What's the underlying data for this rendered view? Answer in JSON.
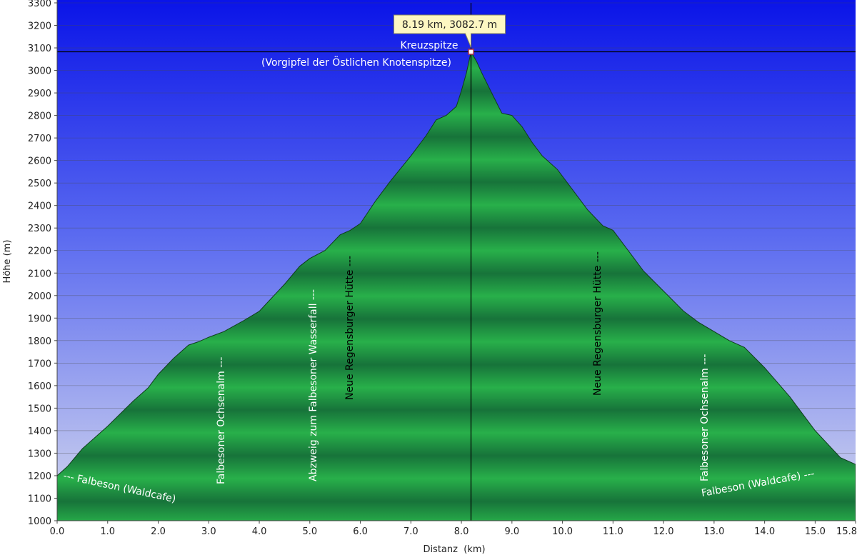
{
  "chart_data": {
    "type": "area",
    "xlabel": "Distanz  (km)",
    "ylabel": "Höhe (m)",
    "xlim": [
      0,
      15.8
    ],
    "ylim": [
      1000,
      3300
    ],
    "x_ticks": [
      "0.0",
      "1.0",
      "2.0",
      "3.0",
      "4.0",
      "5.0",
      "6.0",
      "7.0",
      "8.0",
      "9.0",
      "10.0",
      "11.0",
      "12.0",
      "13.0",
      "14.0",
      "15.0",
      "15.8"
    ],
    "y_ticks": [
      "1000",
      "1100",
      "1200",
      "1300",
      "1400",
      "1500",
      "1600",
      "1700",
      "1800",
      "1900",
      "2000",
      "2100",
      "2200",
      "2300",
      "2400",
      "2500",
      "2600",
      "2700",
      "2800",
      "2900",
      "3000",
      "3100",
      "3200",
      "3300"
    ],
    "grid": true,
    "colors": {
      "sky_top": "#0a14e8",
      "sky_bottom": "#d4d8ee",
      "fill_light": "#28b04a",
      "fill_dark": "#17733a",
      "grid": "#4a4a4a"
    },
    "series": [
      {
        "x": [
          0,
          0.2,
          0.5,
          1.0,
          1.5,
          1.8,
          2.0,
          2.3,
          2.6,
          2.8,
          3.0,
          3.3,
          3.7,
          4.0,
          4.5,
          4.8,
          5.0,
          5.3,
          5.6,
          5.8,
          6.0,
          6.3,
          6.6,
          7.0,
          7.3,
          7.5,
          7.7,
          7.9,
          8.0,
          8.1,
          8.19,
          8.3,
          8.4,
          8.6,
          8.8,
          9.0,
          9.2,
          9.4,
          9.6,
          9.9,
          10.2,
          10.5,
          10.8,
          11.0,
          11.3,
          11.6,
          12.0,
          12.4,
          12.7,
          13.0,
          13.3,
          13.6,
          14.0,
          14.5,
          15.0,
          15.5,
          15.8
        ],
        "y": [
          1200,
          1240,
          1320,
          1420,
          1530,
          1590,
          1650,
          1720,
          1780,
          1795,
          1815,
          1840,
          1890,
          1930,
          2050,
          2130,
          2165,
          2200,
          2270,
          2290,
          2320,
          2420,
          2510,
          2620,
          2710,
          2780,
          2800,
          2840,
          2910,
          2990,
          3082.7,
          3040,
          2990,
          2900,
          2810,
          2800,
          2750,
          2680,
          2620,
          2560,
          2470,
          2380,
          2310,
          2290,
          2200,
          2110,
          2020,
          1930,
          1880,
          1840,
          1800,
          1770,
          1680,
          1550,
          1400,
          1280,
          1250
        ]
      }
    ],
    "crosshair": {
      "x": 8.19,
      "y": 3082.7,
      "tooltip": "8.19 km, 3082.7 m"
    },
    "waypoints": [
      {
        "label": "Kreuzspitze",
        "label2": "(Vorgipfel der Östlichen Knotenspitze)"
      },
      {
        "label": "--- Falbeson (Waldcafe)"
      },
      {
        "label": "Falbesoner Ochsenalm ---"
      },
      {
        "label": "Abzweig zum Falbesoner Wasserfall ---"
      },
      {
        "label": "Neue Regensburger Hütte ---"
      },
      {
        "label": "Neue Regensburger Hütte ---"
      },
      {
        "label": "Falbesoner Ochsenalm ---"
      },
      {
        "label": "Falbeson (Waldcafe) ---"
      }
    ]
  }
}
